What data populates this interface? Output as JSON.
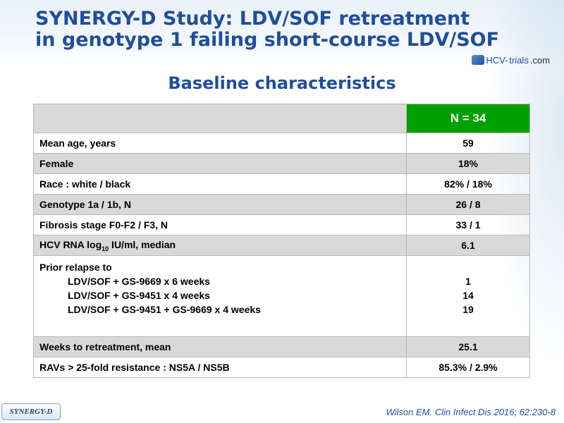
{
  "slide": {
    "title_line1": "SYNERGY-D Study: LDV/SOF retreatment",
    "title_line2": "in genotype 1 failing short-course LDV/SOF",
    "logo_text_a": "HCV-",
    "logo_text_b": "trials",
    "logo_text_c": ".com",
    "subtitle": "Baseline characteristics",
    "badge": "SYNERGY-D",
    "citation": "Wilson EM. Clin Infect Dis 2016; 62:230-8"
  },
  "table": {
    "column_header": "N = 34",
    "rows": [
      {
        "label": "Mean age, years",
        "value": "59"
      },
      {
        "label": "Female",
        "value": "18%"
      },
      {
        "label": "Race : white / black",
        "value": "82% / 18%"
      },
      {
        "label": "Genotype 1a / 1b, N",
        "value": "26 / 8"
      },
      {
        "label": "Fibrosis stage F0-F2 / F3, N",
        "value": "33 / 1"
      },
      {
        "label_pre": "HCV RNA log",
        "label_sub": "10",
        "label_post": " IU/ml, median",
        "value": "6.1"
      },
      {
        "label": "Weeks to retreatment, mean",
        "value": "25.1"
      },
      {
        "label": "RAVs > 25-fold resistance : NS5A / NS5B",
        "value": "85.3% / 2.9%"
      }
    ],
    "prior_relapse": {
      "heading": "Prior relapse to",
      "items": [
        {
          "label": "LDV/SOF + GS-9669 x 6 weeks",
          "value": "1"
        },
        {
          "label": "LDV/SOF + GS-9451 x 4 weeks",
          "value": "14"
        },
        {
          "label": "LDV/SOF + GS-9451 + GS-9669 x 4 weeks",
          "value": "19"
        }
      ]
    }
  }
}
